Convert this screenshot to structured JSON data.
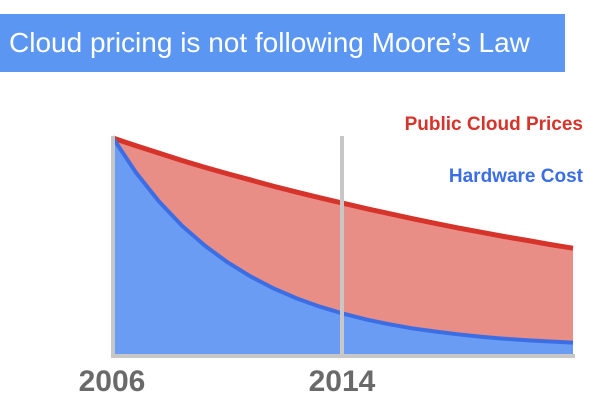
{
  "banner": {
    "title": "Cloud pricing is not following Moore’s Law",
    "color": "#5b96f3"
  },
  "chart_data": {
    "type": "area",
    "title": "Cloud pricing is not following Moore’s Law",
    "xlabel": "",
    "ylabel": "",
    "x_tick_labels": [
      "2006",
      "2014"
    ],
    "marker_line": {
      "label": "2014",
      "color": "#c7c7c7"
    },
    "grid": false,
    "legend": "top-right",
    "series": [
      {
        "name": "Public Cloud Prices",
        "color": "#d6332b",
        "fill": "#e98d87",
        "x": [
          0,
          1,
          2,
          3,
          4,
          5,
          6,
          7,
          8,
          9,
          10,
          11,
          12,
          13,
          14,
          15,
          16,
          17,
          18,
          19,
          20
        ],
        "values": [
          1.0,
          0.964,
          0.93,
          0.896,
          0.864,
          0.834,
          0.805,
          0.776,
          0.749,
          0.723,
          0.698,
          0.673,
          0.65,
          0.627,
          0.605,
          0.584,
          0.564,
          0.544,
          0.526,
          0.507,
          0.49
        ]
      },
      {
        "name": "Hardware Cost",
        "color": "#3b6ee5",
        "fill": "#6b9cf3",
        "x": [
          0,
          1,
          2,
          3,
          4,
          5,
          6,
          7,
          8,
          9,
          10,
          11,
          12,
          13,
          14,
          15,
          16,
          17,
          18,
          19,
          20
        ],
        "values": [
          1.0,
          0.84,
          0.706,
          0.594,
          0.501,
          0.423,
          0.358,
          0.303,
          0.257,
          0.219,
          0.187,
          0.16,
          0.138,
          0.119,
          0.104,
          0.091,
          0.08,
          0.071,
          0.064,
          0.058,
          0.053
        ]
      }
    ],
    "xlim": [
      0,
      20
    ],
    "ylim": [
      0,
      1
    ]
  }
}
